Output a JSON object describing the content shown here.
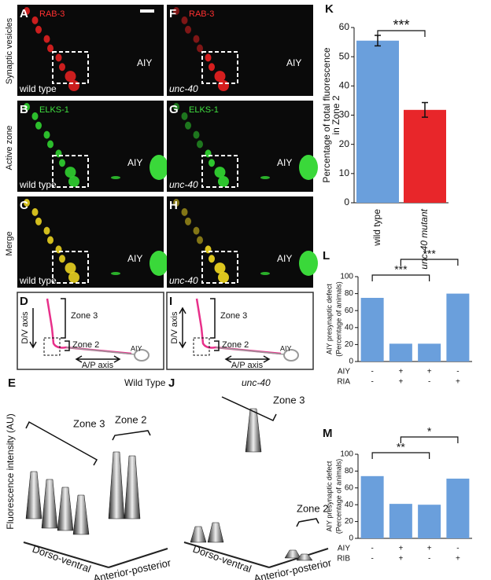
{
  "row_labels": [
    "Synaptic vesicles",
    "Active zone",
    "Merge"
  ],
  "images": [
    {
      "letter": "A",
      "marker": "RAB-3",
      "cell": "AIY",
      "strain": "wild type"
    },
    {
      "letter": "B",
      "marker": "ELKS-1",
      "cell": "AIY",
      "strain": "wild type"
    },
    {
      "letter": "C",
      "cell": "AIY",
      "strain": "wild type"
    },
    {
      "letter": "F",
      "marker": "RAB-3",
      "cell": "AIY",
      "strain": "unc-40"
    },
    {
      "letter": "G",
      "marker": "ELKS-1",
      "cell": "AIY",
      "strain": "unc-40"
    },
    {
      "letter": "H",
      "cell": "AIY",
      "strain": "unc-40"
    }
  ],
  "diagrams": [
    {
      "letter": "D",
      "dv": "D/V axis",
      "zone3": "Zone 3",
      "zone2": "Zone 2",
      "cell": "AIY",
      "ap": "A/P axis"
    },
    {
      "letter": "I",
      "dv": "D/V axis",
      "zone3": "Zone 3",
      "zone2": "Zone 2",
      "cell": "AIY",
      "ap": "A/P axis"
    }
  ],
  "profile_ylabel": "Fluorescence intensity (AU)",
  "profiles": [
    {
      "letter": "E",
      "title": "Wild Type",
      "zone3": "Zone 3",
      "zone2": "Zone 2",
      "x1": "Dorso-ventral",
      "x2": "Anterior-posterior"
    },
    {
      "letter": "J",
      "title": "unc-40",
      "zone3": "Zone 3",
      "zone2": "Zone 2",
      "x1": "Dorso-ventral",
      "x2": "Anterior-posterior"
    }
  ],
  "chart_data": [
    {
      "type": "bar",
      "letter": "K",
      "ylabel": [
        "Percentage of total fluorescence",
        "in Zone 2"
      ],
      "categories": [
        "wild type",
        "unc-40 mutant"
      ],
      "values": [
        55.5,
        31.8
      ],
      "errors": [
        1.8,
        2.5
      ],
      "colors": [
        "#6a9fdc",
        "#e8262a"
      ],
      "ylim": [
        0,
        60
      ],
      "yticks": [
        0,
        10,
        20,
        30,
        40,
        50,
        60
      ],
      "significance": [
        {
          "label": "***",
          "between": [
            0,
            1
          ]
        }
      ]
    },
    {
      "type": "bar",
      "letter": "L",
      "ylabel": [
        "AIY presynaptic defect",
        "(Percentage of animals)"
      ],
      "values": [
        75,
        21,
        21,
        80
      ],
      "color": "#6a9fdc",
      "ylim": [
        0,
        100
      ],
      "yticks": [
        0,
        20,
        40,
        60,
        80,
        100
      ],
      "genotype": [
        {
          "name": "AIY",
          "values": [
            "-",
            "+",
            "+",
            "-"
          ]
        },
        {
          "name": "RIA",
          "values": [
            "-",
            "+",
            "-",
            "+"
          ]
        }
      ],
      "significance": [
        {
          "label": "***",
          "between": [
            0,
            2
          ]
        },
        {
          "label": "***",
          "between": [
            1,
            3
          ]
        }
      ]
    },
    {
      "type": "bar",
      "letter": "M",
      "ylabel": [
        "AIY presynaptic defect",
        "(Percentage of animals)"
      ],
      "values": [
        74,
        41,
        40,
        71
      ],
      "color": "#6a9fdc",
      "ylim": [
        0,
        100
      ],
      "yticks": [
        0,
        20,
        40,
        60,
        80,
        100
      ],
      "genotype": [
        {
          "name": "AIY",
          "values": [
            "-",
            "+",
            "+",
            "-"
          ]
        },
        {
          "name": "RIB",
          "values": [
            "-",
            "+",
            "-",
            "+"
          ]
        }
      ],
      "significance": [
        {
          "label": "**",
          "between": [
            0,
            2
          ]
        },
        {
          "label": "*",
          "between": [
            1,
            3
          ]
        }
      ]
    }
  ]
}
